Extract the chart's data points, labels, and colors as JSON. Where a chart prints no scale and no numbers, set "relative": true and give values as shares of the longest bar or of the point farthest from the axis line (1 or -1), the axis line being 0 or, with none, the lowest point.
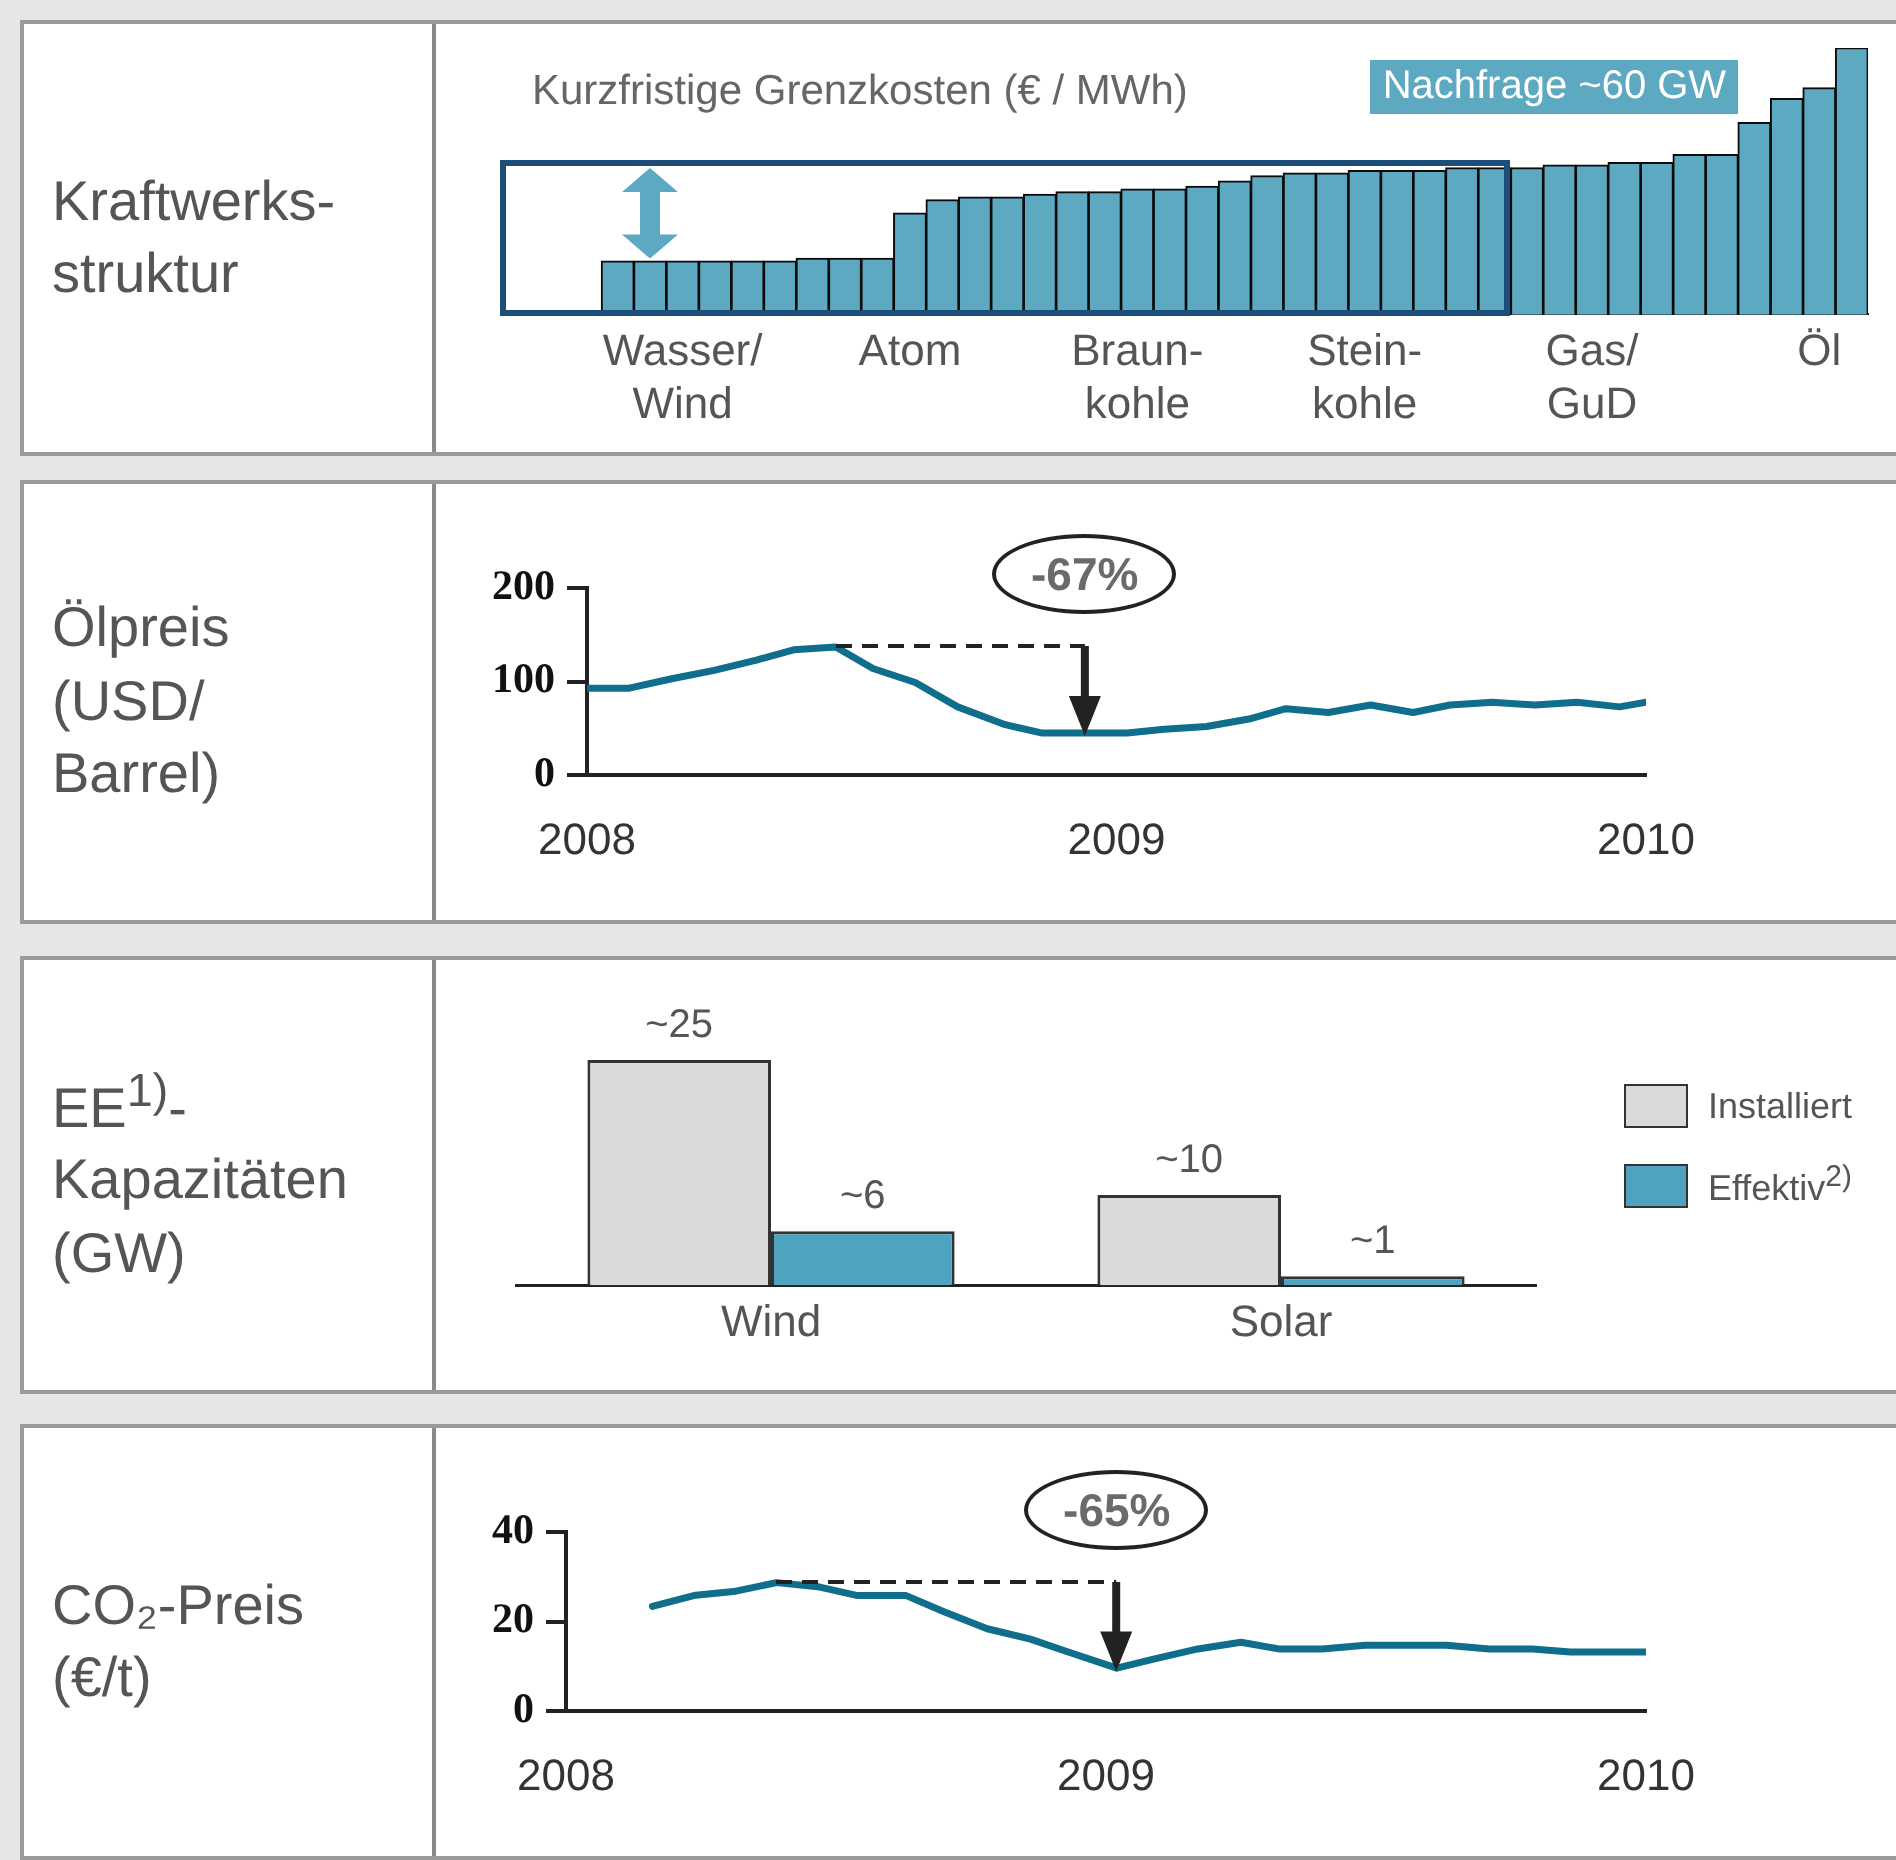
{
  "chart_data": [
    {
      "type": "bar",
      "title": "Kraftwerks-\nstruktur",
      "relative": true,
      "color": "#5ea9c2",
      "ylabel": "Kurzfristige Grenzkosten (€ / MWh)",
      "annotations": [
        "Nachfrage ~60 GW"
      ],
      "categories": [
        null,
        null,
        null,
        null,
        null,
        "Wasser/\nWind",
        null,
        null,
        null,
        null,
        null,
        null,
        "Atom",
        null,
        null,
        null,
        null,
        null,
        null,
        "Braun-\nkohle",
        null,
        null,
        null,
        null,
        null,
        null,
        "Stein-\nkohle",
        null,
        null,
        null,
        null,
        null,
        null,
        "Gas/\nGuD",
        null,
        null,
        null,
        null,
        null,
        null,
        "Öl",
        null
      ],
      "values": [
        null,
        null,
        null,
        0.2,
        0.2,
        0.2,
        0.2,
        0.2,
        0.2,
        0.21,
        0.21,
        0.21,
        0.38,
        0.43,
        0.44,
        0.44,
        0.45,
        0.46,
        0.46,
        0.47,
        0.47,
        0.48,
        0.5,
        0.52,
        0.53,
        0.53,
        0.54,
        0.54,
        0.54,
        0.55,
        0.55,
        0.55,
        0.56,
        0.56,
        0.57,
        0.57,
        0.6,
        0.6,
        0.72,
        0.81,
        0.85,
        1
      ]
    },
    {
      "type": "line",
      "title": "Ölpreis\n(USD/\nBarrel)",
      "color": "#0e6e8c",
      "xlim": [
        2008,
        2010
      ],
      "xticks": [
        2008,
        2009,
        2010
      ],
      "ylim": [
        0,
        200
      ],
      "yticks": [
        0,
        100,
        200
      ],
      "annotations": [
        {
          "text": "-67%",
          "x": 2008.94,
          "y": 45
        }
      ],
      "x": [
        2008,
        2008.08,
        2008.16,
        2008.24,
        2008.32,
        2008.39,
        2008.47,
        2008.54,
        2008.62,
        2008.7,
        2008.79,
        2008.86,
        2008.94,
        2009.02,
        2009.09,
        2009.17,
        2009.25,
        2009.32,
        2009.4,
        2009.48,
        2009.56,
        2009.63,
        2009.71,
        2009.79,
        2009.87,
        2009.95,
        2010
      ],
      "values": [
        93,
        93,
        103,
        112,
        123,
        134,
        137,
        114,
        99,
        73,
        54,
        45,
        45,
        45,
        49,
        52,
        60,
        71,
        67,
        75,
        67,
        75,
        78,
        75,
        78,
        73,
        78
      ]
    },
    {
      "type": "bar",
      "title": "EE$^{1)}$-\nKapazitäten\n(GW)",
      "categories": [
        "Wind",
        "Solar"
      ],
      "legend": "right",
      "tick_labels": "x",
      "series": [
        {
          "name": "Installiert",
          "color": "#d9d9d9",
          "values": [
            25,
            10
          ],
          "value_labels": [
            "~25",
            "~10"
          ]
        },
        {
          "name": "Effektiv$^{2)}$",
          "color": "#4ea3be",
          "values": [
            6,
            1
          ],
          "value_labels": [
            "~6",
            "~1"
          ]
        }
      ]
    },
    {
      "type": "line",
      "title": "CO₂-Preis\n(€/t)",
      "color": "#0e6e8c",
      "xlim": [
        2008,
        2010
      ],
      "xticks": [
        2008,
        2009,
        2010
      ],
      "ylim": [
        0,
        40
      ],
      "yticks": [
        0,
        20,
        40
      ],
      "annotations": [
        {
          "text": "-65%",
          "x": 2009.02,
          "y": 9.6
        }
      ],
      "x": [
        2008.16,
        2008.24,
        2008.31,
        2008.39,
        2008.47,
        2008.54,
        2008.63,
        2008.7,
        2008.78,
        2008.86,
        2008.93,
        2009.02,
        2009.09,
        2009.17,
        2009.25,
        2009.32,
        2009.4,
        2009.48,
        2009.56,
        2009.63,
        2009.71,
        2009.79,
        2009.86,
        2009.95,
        2010
      ],
      "values": [
        23.4,
        25.9,
        26.7,
        28.7,
        27.7,
        25.8,
        25.8,
        22.2,
        18.4,
        16.1,
        13.2,
        9.6,
        11.7,
        13.9,
        15.4,
        13.9,
        13.9,
        14.7,
        14.7,
        14.7,
        13.9,
        13.9,
        13.2,
        13.2,
        13.2
      ]
    }
  ]
}
